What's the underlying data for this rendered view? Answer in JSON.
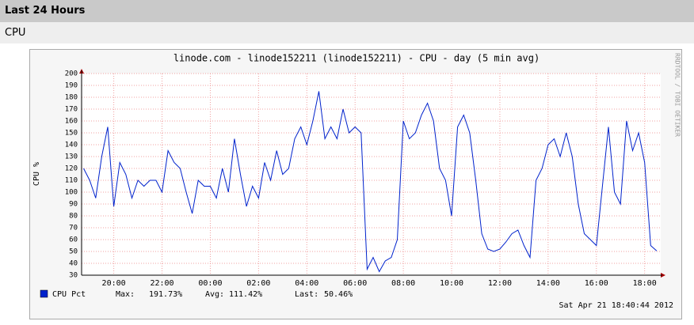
{
  "header": {
    "title": "Last 24 Hours",
    "subtitle": "CPU"
  },
  "chart_data": {
    "type": "line",
    "title": "linode.com - linode152211 (linode152211) - CPU - day (5 min avg)",
    "ylabel": "CPU %",
    "side_text": "RRDTOOL / TOBI OETIKER",
    "timestamp": "Sat Apr 21 18:40:44 2012",
    "x": [
      "18:45",
      "19:00",
      "19:15",
      "19:30",
      "19:45",
      "20:00",
      "20:15",
      "20:30",
      "20:45",
      "21:00",
      "21:15",
      "21:30",
      "21:45",
      "22:00",
      "22:15",
      "22:30",
      "22:45",
      "23:00",
      "23:15",
      "23:30",
      "23:45",
      "00:00",
      "00:15",
      "00:30",
      "00:45",
      "01:00",
      "01:15",
      "01:30",
      "01:45",
      "02:00",
      "02:15",
      "02:30",
      "02:45",
      "03:00",
      "03:15",
      "03:30",
      "03:45",
      "04:00",
      "04:15",
      "04:30",
      "04:45",
      "05:00",
      "05:15",
      "05:30",
      "05:45",
      "06:00",
      "06:15",
      "06:30",
      "06:45",
      "07:00",
      "07:15",
      "07:30",
      "07:45",
      "08:00",
      "08:15",
      "08:30",
      "08:45",
      "09:00",
      "09:15",
      "09:30",
      "09:45",
      "10:00",
      "10:15",
      "10:30",
      "10:45",
      "11:00",
      "11:15",
      "11:30",
      "11:45",
      "12:00",
      "12:15",
      "12:30",
      "12:45",
      "13:00",
      "13:15",
      "13:30",
      "13:45",
      "14:00",
      "14:15",
      "14:30",
      "14:45",
      "15:00",
      "15:15",
      "15:30",
      "15:45",
      "16:00",
      "16:15",
      "16:30",
      "16:45",
      "17:00",
      "17:15",
      "17:30",
      "17:45",
      "18:00",
      "18:15",
      "18:30"
    ],
    "series": [
      {
        "name": "CPU Pct",
        "color": "#0022cc",
        "values": [
          120,
          110,
          95,
          130,
          155,
          88,
          125,
          115,
          95,
          110,
          105,
          110,
          110,
          100,
          135,
          125,
          120,
          100,
          82,
          110,
          105,
          105,
          95,
          120,
          100,
          145,
          115,
          88,
          105,
          95,
          125,
          110,
          135,
          115,
          120,
          145,
          155,
          140,
          160,
          185,
          145,
          155,
          145,
          170,
          150,
          155,
          150,
          35,
          45,
          33,
          42,
          45,
          60,
          160,
          145,
          150,
          165,
          175,
          160,
          120,
          110,
          80,
          155,
          165,
          150,
          110,
          65,
          52,
          50,
          52,
          58,
          65,
          68,
          55,
          45,
          110,
          120,
          140,
          145,
          130,
          150,
          130,
          90,
          65,
          60,
          55,
          105,
          155,
          100,
          90,
          160,
          135,
          150,
          125,
          55,
          50.46
        ]
      }
    ],
    "legend_stats": [
      {
        "label": "Max:",
        "text": "191.73%"
      },
      {
        "label": "Avg:",
        "text": "111.42%"
      },
      {
        "label": "Last:",
        "text": "50.46%"
      }
    ],
    "xlim": [
      "18:40",
      "18:40"
    ],
    "xticks": [
      "20:00",
      "22:00",
      "00:00",
      "02:00",
      "04:00",
      "06:00",
      "08:00",
      "10:00",
      "12:00",
      "14:00",
      "16:00",
      "18:00"
    ],
    "ylim": [
      30,
      200
    ],
    "yticks": [
      30,
      40,
      50,
      60,
      70,
      80,
      90,
      100,
      110,
      120,
      130,
      140,
      150,
      160,
      170,
      180,
      190,
      200
    ],
    "grid": true
  }
}
